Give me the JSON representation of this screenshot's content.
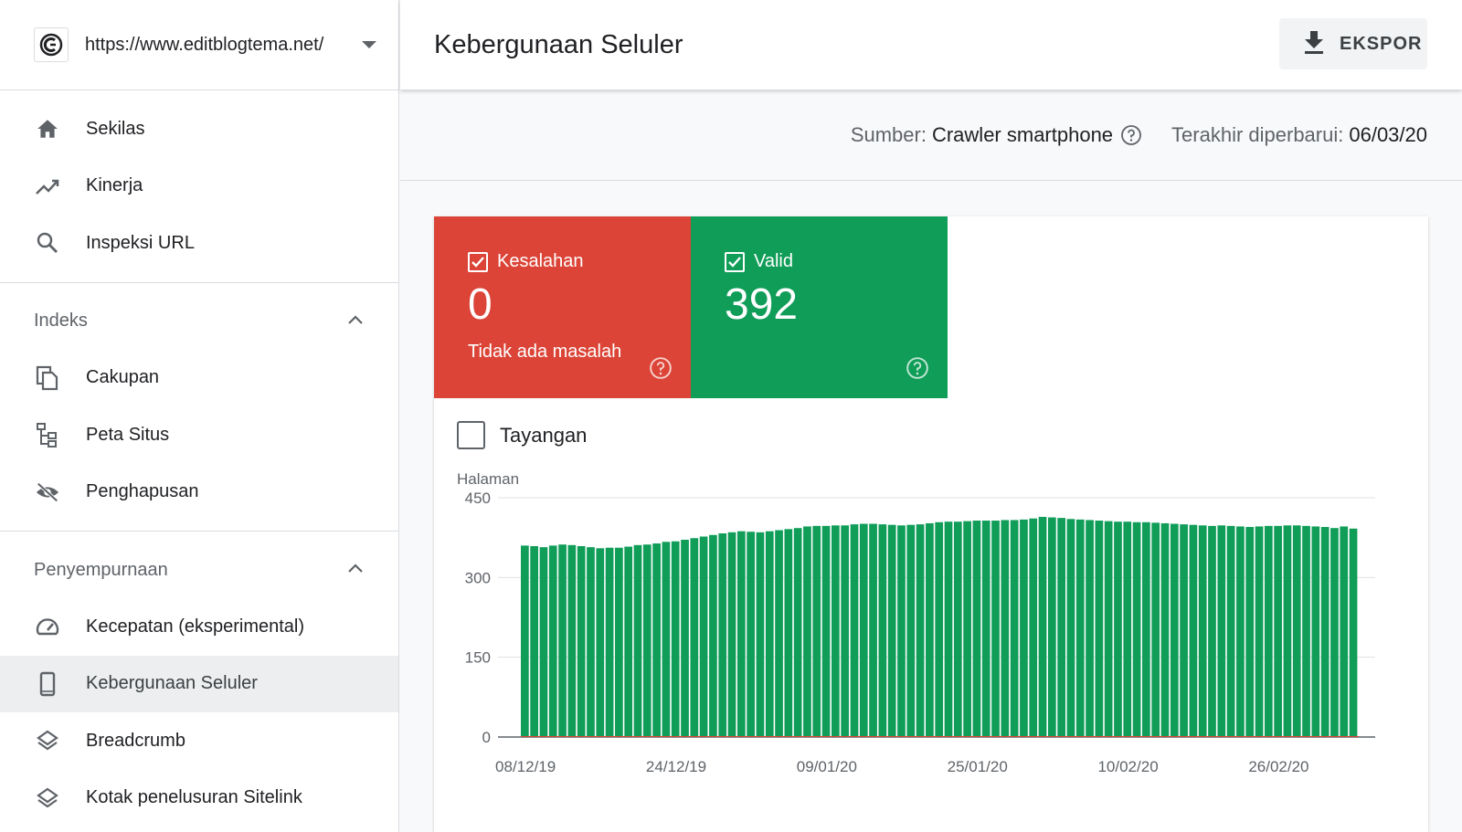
{
  "property": {
    "url": "https://www.editblogtema.net/"
  },
  "nav": {
    "main": [
      {
        "label": "Sekilas",
        "icon": "home-icon"
      },
      {
        "label": "Kinerja",
        "icon": "trending-up-icon"
      },
      {
        "label": "Inspeksi URL",
        "icon": "search-icon"
      }
    ],
    "indeks": {
      "title": "Indeks",
      "items": [
        {
          "label": "Cakupan",
          "icon": "copy-pages-icon"
        },
        {
          "label": "Peta Situs",
          "icon": "sitemap-icon"
        },
        {
          "label": "Penghapusan",
          "icon": "eye-off-icon"
        }
      ]
    },
    "penyempurnaan": {
      "title": "Penyempurnaan",
      "items": [
        {
          "label": "Kecepatan (eksperimental)",
          "icon": "speedometer-icon"
        },
        {
          "label": "Kebergunaan Seluler",
          "icon": "smartphone-icon",
          "active": true
        },
        {
          "label": "Breadcrumb",
          "icon": "layers-icon"
        },
        {
          "label": "Kotak penelusuran Sitelink",
          "icon": "layers-icon"
        }
      ]
    }
  },
  "header": {
    "title": "Kebergunaan Seluler",
    "export_label": "EKSPOR"
  },
  "info": {
    "source_label": "Sumber:",
    "source_value": "Crawler smartphone",
    "updated_label": "Terakhir diperbarui:",
    "updated_value": "06/03/20"
  },
  "tiles": {
    "error": {
      "label": "Kesalahan",
      "count": "0",
      "sub": "Tidak ada masalah",
      "color": "#db4437"
    },
    "valid": {
      "label": "Valid",
      "count": "392",
      "color": "#0f9d58"
    }
  },
  "impressions": {
    "label": "Tayangan"
  },
  "chart_data": {
    "type": "bar",
    "ylabel": "Halaman",
    "ylim": [
      0,
      450
    ],
    "yticks": [
      0,
      150,
      300,
      450
    ],
    "x_tick_labels": [
      "08/12/19",
      "24/12/19",
      "09/01/20",
      "25/01/20",
      "10/02/20",
      "26/02/20"
    ],
    "x_tick_start_index": 0,
    "x_tick_step": 16,
    "series": [
      {
        "color": "#0f9d58",
        "values": [
          360,
          359,
          357,
          360,
          362,
          361,
          359,
          357,
          355,
          356,
          356,
          358,
          361,
          362,
          364,
          367,
          368,
          371,
          374,
          377,
          380,
          383,
          385,
          387,
          386,
          385,
          387,
          389,
          391,
          393,
          396,
          397,
          397,
          398,
          398,
          400,
          401,
          401,
          400,
          399,
          398,
          399,
          400,
          402,
          404,
          405,
          405,
          406,
          407,
          407,
          407,
          408,
          408,
          409,
          411,
          414,
          413,
          412,
          410,
          409,
          408,
          407,
          406,
          405,
          405,
          404,
          404,
          403,
          402,
          401,
          400,
          399,
          398,
          397,
          398,
          397,
          396,
          395,
          396,
          397,
          397,
          398,
          398,
          397,
          396,
          395,
          393,
          396,
          392
        ]
      }
    ],
    "bar_color": "#0f9d58"
  }
}
